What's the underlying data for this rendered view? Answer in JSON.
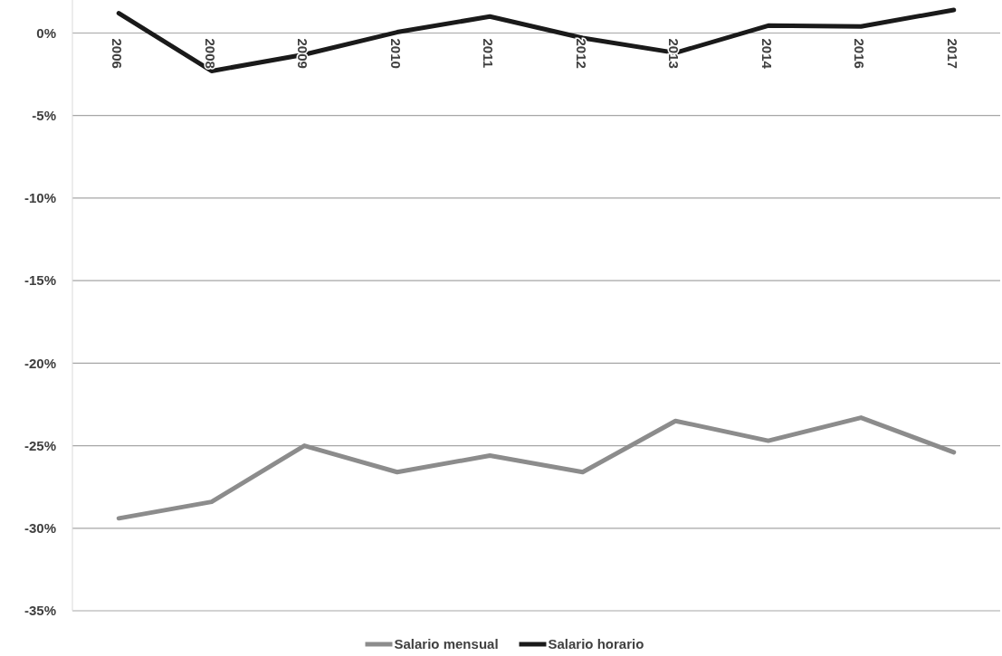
{
  "chart_data": {
    "type": "line",
    "categories": [
      "2006",
      "2008",
      "2009",
      "2010",
      "2011",
      "2012",
      "2013",
      "2014",
      "2016",
      "2017"
    ],
    "series": [
      {
        "name": "Salario mensual",
        "color": "#8c8c8c",
        "values": [
          -29.4,
          -28.4,
          -25.0,
          -26.6,
          -25.6,
          -26.6,
          -23.5,
          -24.7,
          -23.3,
          -25.4
        ]
      },
      {
        "name": "Salario horario",
        "color": "#1a1a1a",
        "values": [
          1.2,
          -2.3,
          -1.3,
          0.05,
          1.0,
          -0.3,
          -1.2,
          0.45,
          0.4,
          1.4
        ]
      }
    ],
    "ylim": [
      -35,
      2
    ],
    "yticks": [
      {
        "value": 0,
        "label": "0%"
      },
      {
        "value": -5,
        "label": "-5%"
      },
      {
        "value": -10,
        "label": "-10%"
      },
      {
        "value": -15,
        "label": "-15%"
      },
      {
        "value": -20,
        "label": "-20%"
      },
      {
        "value": -25,
        "label": "-25%"
      },
      {
        "value": -30,
        "label": "-30%"
      },
      {
        "value": -35,
        "label": "-35%"
      }
    ],
    "grid": "y",
    "legend": "bottom",
    "marker": "none",
    "line_style": "solid"
  }
}
